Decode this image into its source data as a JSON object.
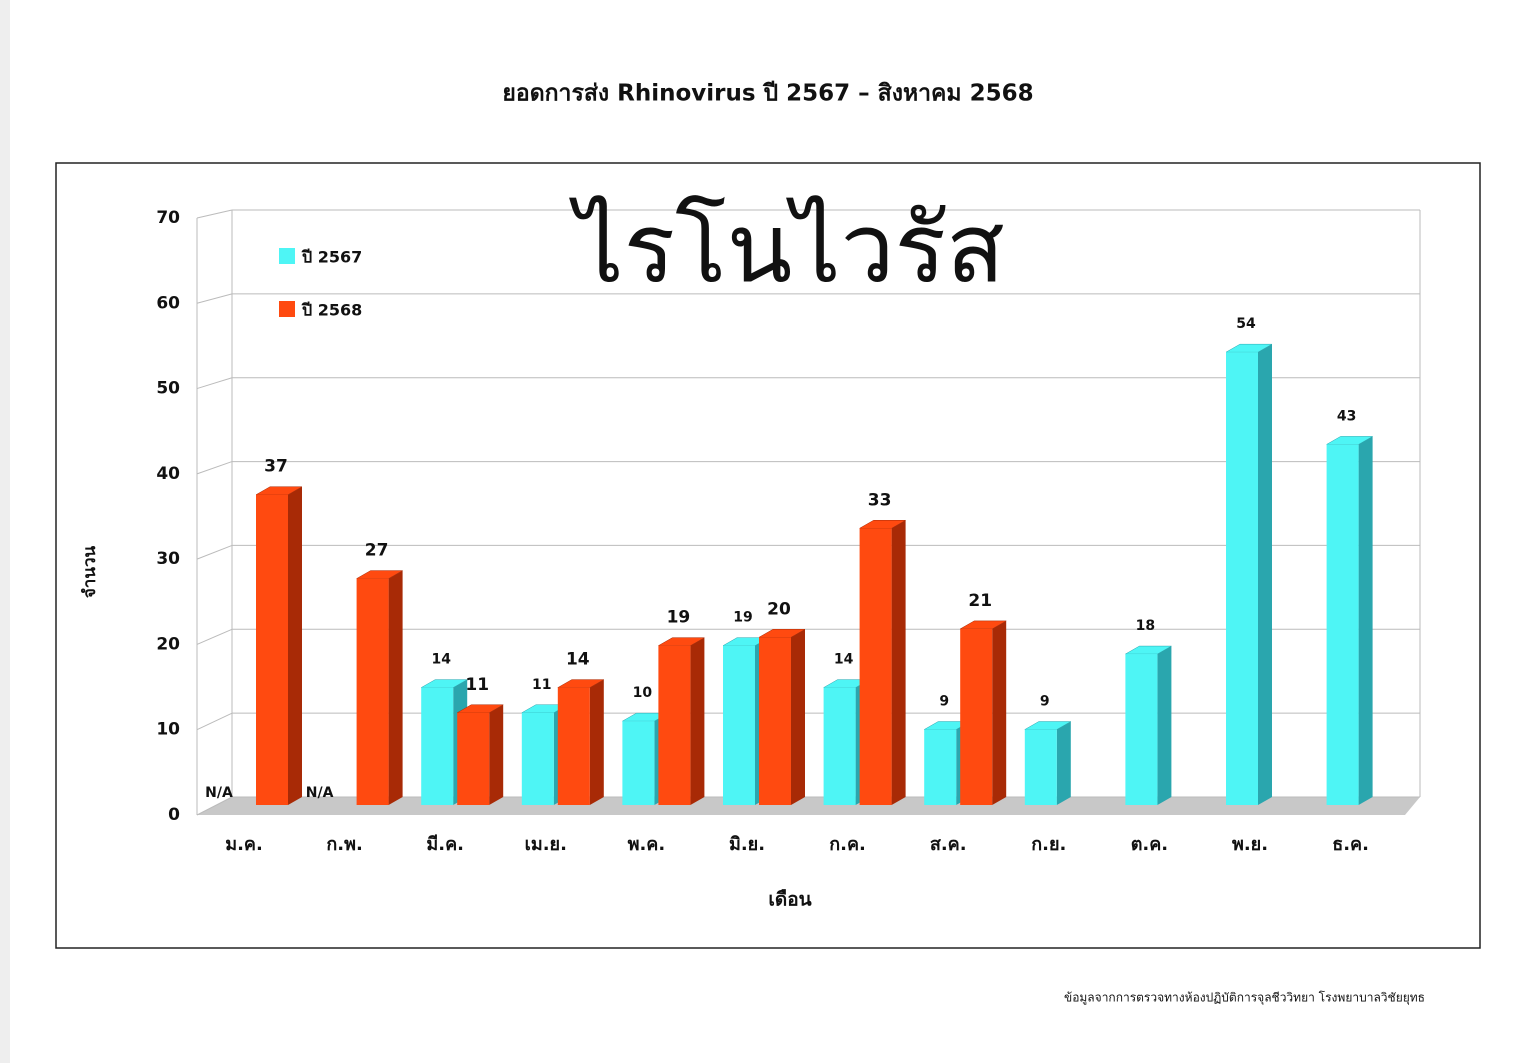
{
  "chart_data": {
    "type": "bar3d",
    "title": "ยอดการส่ง Rhinovirus ปี 2567 – สิงหาคม 2568",
    "annotation": "ไรโนไวรัส",
    "x_label": "เดือน",
    "y_label": "จำนวน",
    "source": "ข้อมูลจากการตรวจทางห้องปฏิบัติการจุลชีววิทยา โรงพยาบาลวิชัยยุทธ",
    "categories": [
      "ม.ค.",
      "ก.พ.",
      "มี.ค.",
      "เม.ย.",
      "พ.ค.",
      "มิ.ย.",
      "ก.ค.",
      "ส.ค.",
      "ก.ย.",
      "ต.ค.",
      "พ.ย.",
      "ธ.ค."
    ],
    "series": [
      {
        "name": "ปี 2567",
        "color": "#4ef5f5",
        "side": "#2aa6ae",
        "values": [
          null,
          null,
          14,
          11,
          10,
          19,
          14,
          9,
          9,
          18,
          54,
          43
        ],
        "value_labels": [
          "N/A",
          "N/A",
          "14",
          "11",
          "10",
          "19",
          "14",
          "9",
          "9",
          "18",
          "54",
          "43"
        ]
      },
      {
        "name": "ปี 2568",
        "color": "#ff4a10",
        "side": "#a82a06",
        "values": [
          37,
          27,
          11,
          14,
          19,
          20,
          33,
          21,
          null,
          null,
          null,
          null
        ]
      }
    ],
    "ylim": [
      0,
      70
    ],
    "yticks": [
      0,
      10,
      20,
      30,
      40,
      50,
      60,
      70
    ],
    "grid": true,
    "legend": "top-left"
  }
}
